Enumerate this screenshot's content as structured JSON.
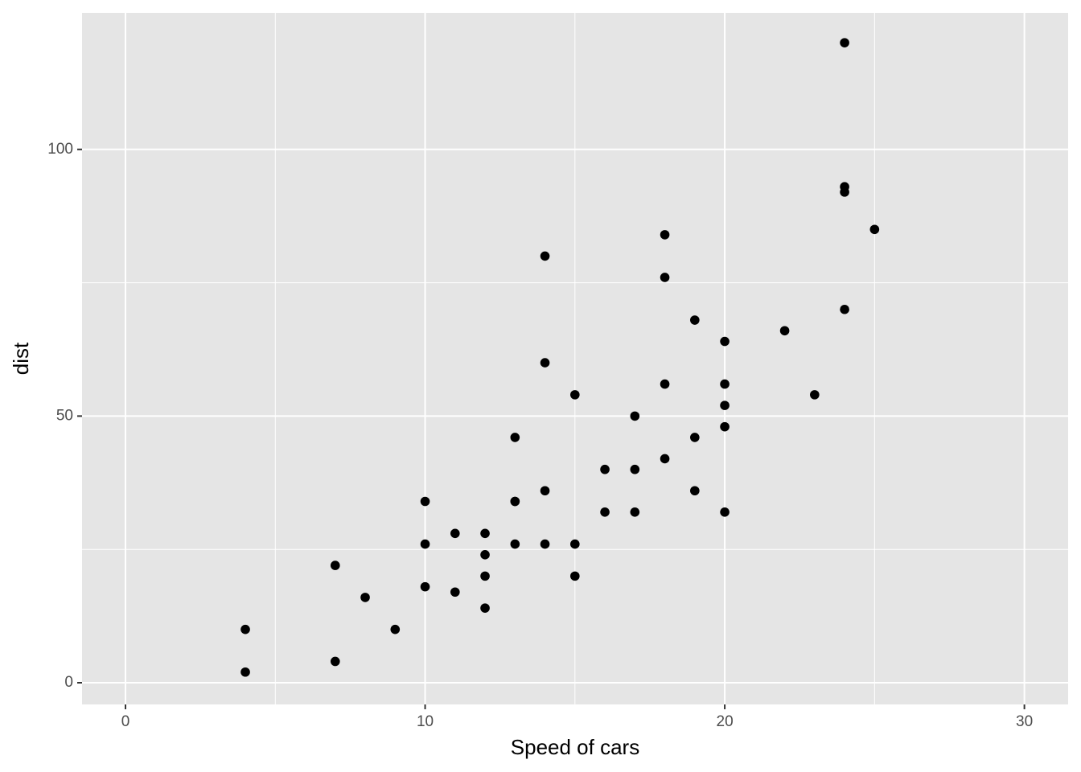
{
  "chart_data": {
    "type": "scatter",
    "x_label": "Speed of cars",
    "y_label": "dist",
    "series": [
      {
        "color": "#000000",
        "x": [
          4,
          4,
          7,
          7,
          8,
          9,
          10,
          10,
          10,
          11,
          11,
          12,
          12,
          12,
          12,
          13,
          13,
          13,
          13,
          14,
          14,
          14,
          14,
          15,
          15,
          15,
          16,
          16,
          17,
          17,
          17,
          18,
          18,
          18,
          18,
          19,
          19,
          19,
          20,
          20,
          20,
          20,
          20,
          22,
          23,
          24,
          24,
          24,
          24,
          25
        ],
        "values": [
          2,
          10,
          4,
          22,
          16,
          10,
          18,
          26,
          34,
          17,
          28,
          14,
          20,
          24,
          28,
          26,
          34,
          34,
          46,
          26,
          36,
          60,
          80,
          20,
          26,
          54,
          32,
          40,
          32,
          40,
          50,
          42,
          56,
          76,
          84,
          36,
          46,
          68,
          32,
          48,
          52,
          56,
          64,
          66,
          54,
          70,
          92,
          93,
          120,
          85
        ]
      }
    ],
    "xlim": [
      -1.45,
      31.46
    ],
    "xticks": [
      0,
      10,
      20,
      30
    ],
    "xminor": [
      5,
      15,
      25
    ],
    "ylim": [
      -4.07,
      125.6
    ],
    "yticks": [
      0,
      50,
      100
    ],
    "yminor": [
      25,
      75
    ],
    "grid": true
  }
}
